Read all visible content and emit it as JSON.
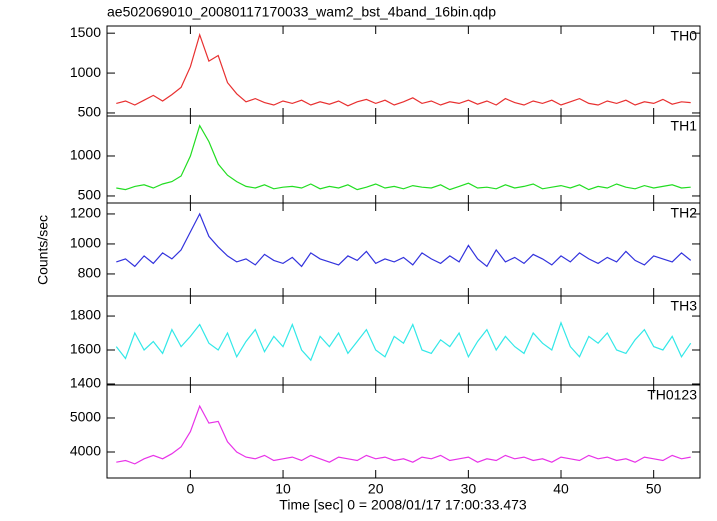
{
  "title": "ae502069010_20080117170033_wam2_bst_4band_16bin.qdp",
  "xlabel": "Time [sec] 0 = 2008/01/17 17:00:33.473",
  "ylabel": "Counts/sec",
  "chart_data": [
    {
      "type": "line",
      "label": "TH0",
      "color": "#e83030",
      "x": [
        -8,
        -7,
        -6,
        -5,
        -4,
        -3,
        -2,
        -1,
        0,
        1,
        2,
        3,
        4,
        5,
        6,
        7,
        8,
        9,
        10,
        11,
        12,
        13,
        14,
        15,
        16,
        17,
        18,
        19,
        20,
        21,
        22,
        23,
        24,
        25,
        26,
        27,
        28,
        29,
        30,
        31,
        32,
        33,
        34,
        35,
        36,
        37,
        38,
        39,
        40,
        41,
        42,
        43,
        44,
        45,
        46,
        47,
        48,
        49,
        50,
        51,
        52,
        53,
        54
      ],
      "values": [
        620,
        650,
        600,
        660,
        720,
        650,
        730,
        820,
        1080,
        1480,
        1150,
        1220,
        880,
        740,
        640,
        680,
        630,
        600,
        650,
        620,
        660,
        600,
        640,
        610,
        650,
        590,
        640,
        670,
        620,
        660,
        600,
        640,
        690,
        620,
        650,
        600,
        640,
        620,
        660,
        610,
        650,
        600,
        680,
        630,
        600,
        650,
        620,
        660,
        600,
        640,
        680,
        620,
        600,
        650,
        620,
        660,
        600,
        640,
        620,
        670,
        610,
        640,
        630
      ],
      "xlim": [
        -9,
        55
      ],
      "xticks": [
        0,
        10,
        20,
        30,
        40,
        50
      ],
      "ylim": [
        462,
        1590
      ],
      "yticks": [
        500,
        1000,
        1500
      ]
    },
    {
      "type": "line",
      "label": "TH1",
      "color": "#22dd22",
      "x": [
        -8,
        -7,
        -6,
        -5,
        -4,
        -3,
        -2,
        -1,
        0,
        1,
        2,
        3,
        4,
        5,
        6,
        7,
        8,
        9,
        10,
        11,
        12,
        13,
        14,
        15,
        16,
        17,
        18,
        19,
        20,
        21,
        22,
        23,
        24,
        25,
        26,
        27,
        28,
        29,
        30,
        31,
        32,
        33,
        34,
        35,
        36,
        37,
        38,
        39,
        40,
        41,
        42,
        43,
        44,
        45,
        46,
        47,
        48,
        49,
        50,
        51,
        52,
        53,
        54
      ],
      "values": [
        600,
        580,
        620,
        640,
        600,
        650,
        680,
        750,
        1000,
        1380,
        1180,
        900,
        760,
        680,
        620,
        600,
        640,
        590,
        610,
        620,
        600,
        650,
        590,
        620,
        600,
        640,
        580,
        610,
        650,
        600,
        620,
        590,
        630,
        610,
        600,
        640,
        580,
        620,
        660,
        600,
        610,
        590,
        640,
        600,
        620,
        650,
        590,
        610,
        630,
        600,
        640,
        580,
        620,
        600,
        650,
        610,
        590,
        630,
        600,
        620,
        640,
        600,
        610
      ],
      "xlim": [
        -9,
        55
      ],
      "xticks": [
        0,
        10,
        20,
        30,
        40,
        50
      ],
      "ylim": [
        412,
        1500
      ],
      "yticks": [
        500,
        1000
      ]
    },
    {
      "type": "line",
      "label": "TH2",
      "color": "#3333dd",
      "x": [
        -8,
        -7,
        -6,
        -5,
        -4,
        -3,
        -2,
        -1,
        0,
        1,
        2,
        3,
        4,
        5,
        6,
        7,
        8,
        9,
        10,
        11,
        12,
        13,
        14,
        15,
        16,
        17,
        18,
        19,
        20,
        21,
        22,
        23,
        24,
        25,
        26,
        27,
        28,
        29,
        30,
        31,
        32,
        33,
        34,
        35,
        36,
        37,
        38,
        39,
        40,
        41,
        42,
        43,
        44,
        45,
        46,
        47,
        48,
        49,
        50,
        51,
        52,
        53,
        54
      ],
      "values": [
        880,
        900,
        850,
        920,
        870,
        940,
        900,
        960,
        1080,
        1200,
        1050,
        980,
        920,
        880,
        900,
        860,
        930,
        890,
        870,
        910,
        850,
        940,
        900,
        880,
        860,
        920,
        890,
        950,
        870,
        900,
        880,
        910,
        860,
        940,
        900,
        870,
        920,
        880,
        990,
        900,
        850,
        960,
        880,
        910,
        870,
        930,
        900,
        860,
        920,
        880,
        940,
        900,
        870,
        910,
        880,
        950,
        890,
        860,
        920,
        900,
        880,
        940,
        890
      ],
      "xlim": [
        -9,
        55
      ],
      "xticks": [
        0,
        10,
        20,
        30,
        40,
        50
      ],
      "ylim": [
        653,
        1273
      ],
      "yticks": [
        800,
        1000,
        1200
      ]
    },
    {
      "type": "line",
      "label": "TH3",
      "color": "#33e8e8",
      "x": [
        -8,
        -7,
        -6,
        -5,
        -4,
        -3,
        -2,
        -1,
        0,
        1,
        2,
        3,
        4,
        5,
        6,
        7,
        8,
        9,
        10,
        11,
        12,
        13,
        14,
        15,
        16,
        17,
        18,
        19,
        20,
        21,
        22,
        23,
        24,
        25,
        26,
        27,
        28,
        29,
        30,
        31,
        32,
        33,
        34,
        35,
        36,
        37,
        38,
        39,
        40,
        41,
        42,
        43,
        44,
        45,
        46,
        47,
        48,
        49,
        50,
        51,
        52,
        53,
        54
      ],
      "values": [
        1620,
        1550,
        1700,
        1600,
        1650,
        1580,
        1720,
        1620,
        1680,
        1750,
        1640,
        1600,
        1700,
        1560,
        1650,
        1720,
        1590,
        1680,
        1620,
        1750,
        1600,
        1540,
        1680,
        1620,
        1700,
        1580,
        1650,
        1720,
        1600,
        1560,
        1680,
        1640,
        1750,
        1600,
        1580,
        1660,
        1620,
        1700,
        1560,
        1650,
        1720,
        1600,
        1680,
        1620,
        1580,
        1700,
        1640,
        1600,
        1760,
        1620,
        1560,
        1680,
        1640,
        1700,
        1600,
        1580,
        1660,
        1720,
        1620,
        1600,
        1680,
        1560,
        1640
      ],
      "xlim": [
        -9,
        55
      ],
      "xticks": [
        0,
        10,
        20,
        30,
        40,
        50
      ],
      "ylim": [
        1394,
        1918
      ],
      "yticks": [
        1400,
        1600,
        1800
      ]
    },
    {
      "type": "line",
      "label": "TH0123",
      "color": "#e833e8",
      "x": [
        -8,
        -7,
        -6,
        -5,
        -4,
        -3,
        -2,
        -1,
        0,
        1,
        2,
        3,
        4,
        5,
        6,
        7,
        8,
        9,
        10,
        11,
        12,
        13,
        14,
        15,
        16,
        17,
        18,
        19,
        20,
        21,
        22,
        23,
        24,
        25,
        26,
        27,
        28,
        29,
        30,
        31,
        32,
        33,
        34,
        35,
        36,
        37,
        38,
        39,
        40,
        41,
        42,
        43,
        44,
        45,
        46,
        47,
        48,
        49,
        50,
        51,
        52,
        53,
        54
      ],
      "values": [
        3700,
        3750,
        3650,
        3800,
        3900,
        3800,
        3950,
        4150,
        4600,
        5350,
        4850,
        4900,
        4300,
        4000,
        3850,
        3800,
        3900,
        3750,
        3800,
        3850,
        3750,
        3900,
        3800,
        3700,
        3850,
        3800,
        3750,
        3900,
        3800,
        3850,
        3750,
        3800,
        3700,
        3850,
        3800,
        3900,
        3750,
        3800,
        3850,
        3700,
        3800,
        3750,
        3900,
        3800,
        3850,
        3750,
        3800,
        3700,
        3850,
        3800,
        3750,
        3900,
        3800,
        3850,
        3750,
        3800,
        3700,
        3850,
        3800,
        3750,
        3900,
        3800,
        3850
      ],
      "xlim": [
        -9,
        55
      ],
      "xticks": [
        0,
        10,
        20,
        30,
        40,
        50
      ],
      "ylim": [
        3235,
        5970
      ],
      "yticks": [
        4000,
        5000
      ]
    }
  ]
}
